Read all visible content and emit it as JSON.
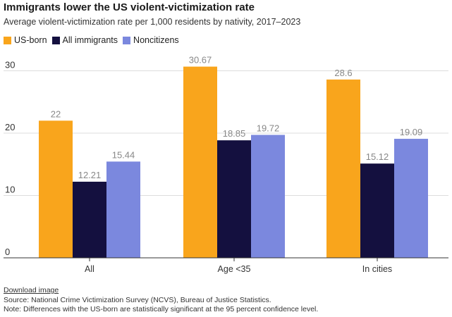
{
  "chart_data": {
    "type": "bar",
    "title": "Immigrants lower the US violent-victimization rate",
    "subtitle": "Average violent-victimization rate per 1,000 residents by nativity, 2017–2023",
    "categories": [
      "All",
      "Age <35",
      "In cities"
    ],
    "series": [
      {
        "name": "US-born",
        "color": "#F9A51C",
        "values": [
          22,
          30.67,
          28.6
        ],
        "labels": [
          "22",
          "30.67",
          "28.6"
        ]
      },
      {
        "name": "All immigrants",
        "color": "#14103F",
        "values": [
          12.21,
          18.85,
          15.12
        ],
        "labels": [
          "12.21",
          "18.85",
          "15.12"
        ]
      },
      {
        "name": "Noncitizens",
        "color": "#7B88DE",
        "values": [
          15.44,
          19.72,
          19.09
        ],
        "labels": [
          "15.44",
          "19.72",
          "19.09"
        ]
      }
    ],
    "yticks": [
      0,
      10,
      20,
      30
    ],
    "ytick_labels": [
      "0",
      "10",
      "20",
      "30"
    ],
    "ylim": [
      0,
      30
    ],
    "xlabel": "",
    "ylabel": "",
    "grid": true,
    "legend": "top-left"
  },
  "footer": {
    "download_label": "Download image",
    "source": "Source: National Crime Victimization Survey (NCVS), Bureau of Justice Statistics.",
    "note": "Note: Differences with the US-born are statistically significant at the 95 percent confidence level."
  }
}
